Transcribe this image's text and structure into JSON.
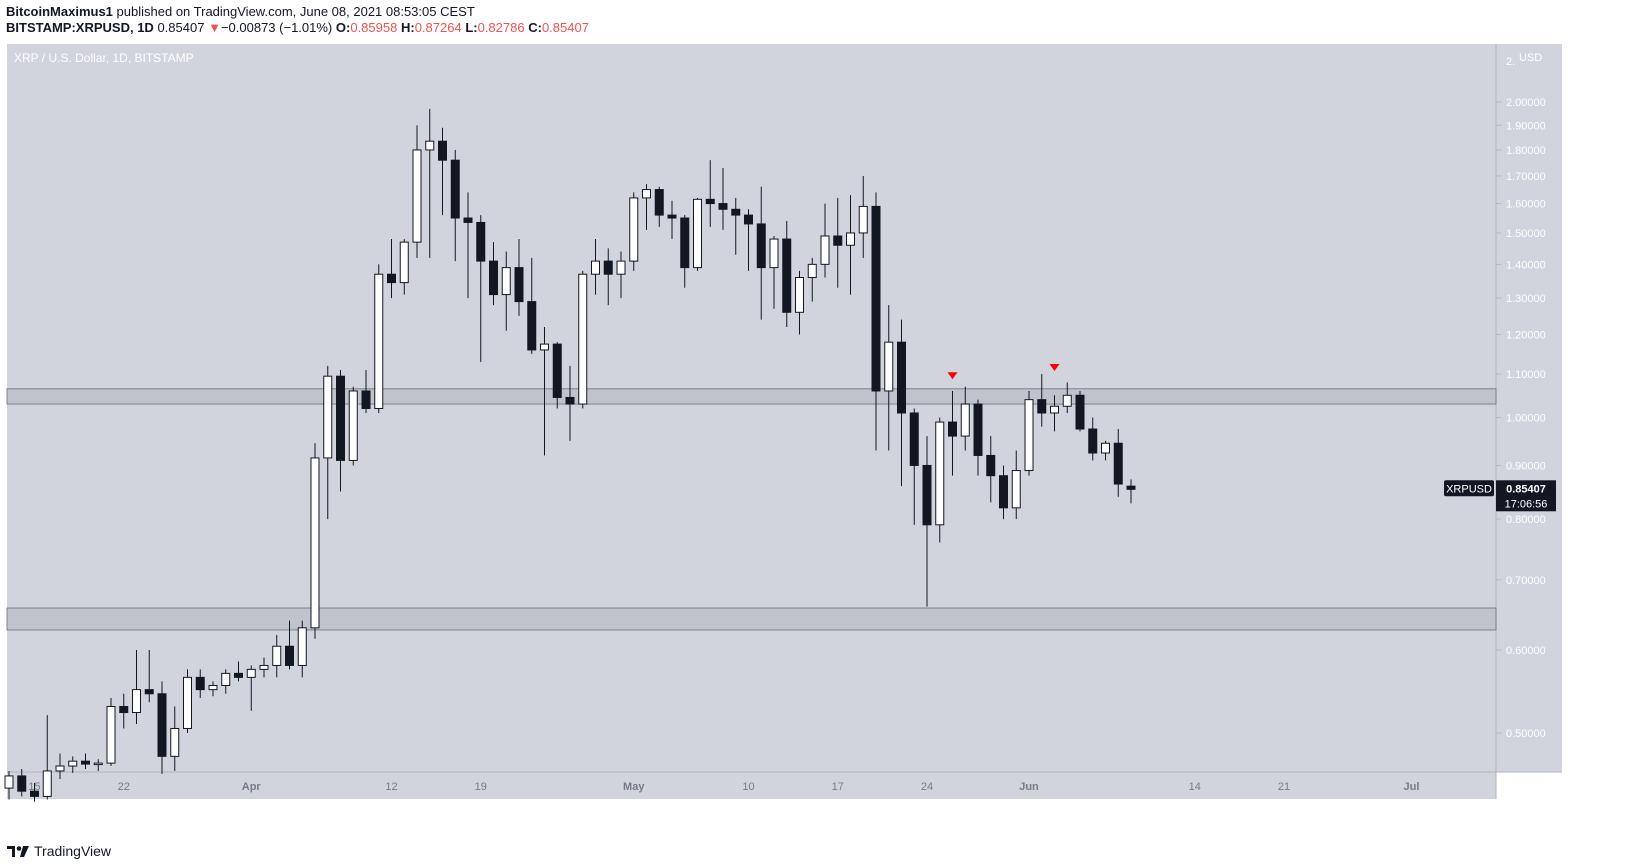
{
  "header": {
    "publisher": "BitcoinMaximus1",
    "published_text": "published on TradingView.com, June 08, 2021 08:53:05 CEST",
    "symbol": "BITSTAMP:XRPUSD, 1D",
    "last": "0.85407",
    "change_arrow": "▼",
    "change": "−0.00873 (−1.01%)",
    "o_label": "O:",
    "o": "0.85958",
    "h_label": "H:",
    "h": "0.87264",
    "l_label": "L:",
    "l": "0.82786",
    "c_label": "C:",
    "c": "0.85407"
  },
  "footer": {
    "brand": "TradingView",
    "logo_icon": "tradingview-logo-icon"
  },
  "colors": {
    "background": "#d1d4dc",
    "up_body": "#ffffff",
    "down_body": "#131722",
    "wick": "#131722",
    "marker": "#ff0000",
    "down_text": "#ef5350",
    "label_bg": "#131722"
  },
  "chart_data": {
    "type": "candlestick",
    "title": "XRP / U.S. Dollar, 1D, BITSTAMP",
    "currency": "USD",
    "y_scale": "log",
    "ylim": [
      0.43,
      2.1
    ],
    "y_ticks": [
      "2.00000",
      "1.90000",
      "1.80000",
      "1.70000",
      "1.60000",
      "1.50000",
      "1.40000",
      "1.30000",
      "1.20000",
      "1.10000",
      "1.00000",
      "0.90000",
      "0.80000",
      "0.70000",
      "0.60000",
      "0.50000"
    ],
    "y_top_label": "2.",
    "x_ticks": [
      {
        "label": "15",
        "date": "2021-03-15"
      },
      {
        "label": "22",
        "date": "2021-03-22"
      },
      {
        "label": "Apr",
        "date": "2021-04-01"
      },
      {
        "label": "12",
        "date": "2021-04-12"
      },
      {
        "label": "19",
        "date": "2021-04-19"
      },
      {
        "label": "May",
        "date": "2021-05-01"
      },
      {
        "label": "10",
        "date": "2021-05-10"
      },
      {
        "label": "17",
        "date": "2021-05-17"
      },
      {
        "label": "24",
        "date": "2021-05-24"
      },
      {
        "label": "Jun",
        "date": "2021-06-01"
      },
      {
        "label": "14",
        "date": "2021-06-14"
      },
      {
        "label": "21",
        "date": "2021-06-21"
      },
      {
        "label": "Jul",
        "date": "2021-07-01"
      }
    ],
    "x_range": [
      "2021-03-13",
      "2021-07-09"
    ],
    "candles": [
      {
        "date": "2021-03-13",
        "o": 0.443,
        "h": 0.46,
        "l": 0.432,
        "c": 0.455
      },
      {
        "date": "2021-03-14",
        "o": 0.455,
        "h": 0.462,
        "l": 0.435,
        "c": 0.44
      },
      {
        "date": "2021-03-15",
        "o": 0.44,
        "h": 0.448,
        "l": 0.43,
        "c": 0.435
      },
      {
        "date": "2021-03-16",
        "o": 0.435,
        "h": 0.52,
        "l": 0.432,
        "c": 0.46
      },
      {
        "date": "2021-03-17",
        "o": 0.46,
        "h": 0.478,
        "l": 0.452,
        "c": 0.465
      },
      {
        "date": "2021-03-18",
        "o": 0.465,
        "h": 0.475,
        "l": 0.458,
        "c": 0.47
      },
      {
        "date": "2021-03-19",
        "o": 0.47,
        "h": 0.478,
        "l": 0.462,
        "c": 0.467
      },
      {
        "date": "2021-03-20",
        "o": 0.467,
        "h": 0.472,
        "l": 0.46,
        "c": 0.468
      },
      {
        "date": "2021-03-21",
        "o": 0.468,
        "h": 0.54,
        "l": 0.465,
        "c": 0.53
      },
      {
        "date": "2021-03-22",
        "o": 0.53,
        "h": 0.545,
        "l": 0.505,
        "c": 0.523
      },
      {
        "date": "2021-03-23",
        "o": 0.523,
        "h": 0.6,
        "l": 0.51,
        "c": 0.55
      },
      {
        "date": "2021-03-24",
        "o": 0.55,
        "h": 0.6,
        "l": 0.535,
        "c": 0.545
      },
      {
        "date": "2021-03-25",
        "o": 0.545,
        "h": 0.56,
        "l": 0.457,
        "c": 0.475
      },
      {
        "date": "2021-03-26",
        "o": 0.475,
        "h": 0.53,
        "l": 0.46,
        "c": 0.505
      },
      {
        "date": "2021-03-27",
        "o": 0.505,
        "h": 0.575,
        "l": 0.5,
        "c": 0.565
      },
      {
        "date": "2021-03-28",
        "o": 0.565,
        "h": 0.575,
        "l": 0.54,
        "c": 0.55
      },
      {
        "date": "2021-03-29",
        "o": 0.55,
        "h": 0.56,
        "l": 0.542,
        "c": 0.555
      },
      {
        "date": "2021-03-30",
        "o": 0.555,
        "h": 0.575,
        "l": 0.545,
        "c": 0.57
      },
      {
        "date": "2021-03-31",
        "o": 0.57,
        "h": 0.585,
        "l": 0.56,
        "c": 0.565
      },
      {
        "date": "2021-04-01",
        "o": 0.565,
        "h": 0.58,
        "l": 0.525,
        "c": 0.575
      },
      {
        "date": "2021-04-02",
        "o": 0.575,
        "h": 0.59,
        "l": 0.565,
        "c": 0.58
      },
      {
        "date": "2021-04-03",
        "o": 0.58,
        "h": 0.62,
        "l": 0.565,
        "c": 0.605
      },
      {
        "date": "2021-04-04",
        "o": 0.605,
        "h": 0.64,
        "l": 0.575,
        "c": 0.58
      },
      {
        "date": "2021-04-05",
        "o": 0.58,
        "h": 0.64,
        "l": 0.565,
        "c": 0.63
      },
      {
        "date": "2021-04-06",
        "o": 0.63,
        "h": 0.945,
        "l": 0.615,
        "c": 0.915
      },
      {
        "date": "2021-04-07",
        "o": 0.915,
        "h": 1.12,
        "l": 0.8,
        "c": 1.095
      },
      {
        "date": "2021-04-08",
        "o": 1.095,
        "h": 1.11,
        "l": 0.85,
        "c": 0.91
      },
      {
        "date": "2021-04-09",
        "o": 0.91,
        "h": 1.07,
        "l": 0.9,
        "c": 1.06
      },
      {
        "date": "2021-04-10",
        "o": 1.06,
        "h": 1.11,
        "l": 1.01,
        "c": 1.02
      },
      {
        "date": "2021-04-11",
        "o": 1.02,
        "h": 1.4,
        "l": 1.01,
        "c": 1.37
      },
      {
        "date": "2021-04-12",
        "o": 1.37,
        "h": 1.48,
        "l": 1.3,
        "c": 1.345
      },
      {
        "date": "2021-04-13",
        "o": 1.345,
        "h": 1.48,
        "l": 1.31,
        "c": 1.47
      },
      {
        "date": "2021-04-14",
        "o": 1.47,
        "h": 1.9,
        "l": 1.42,
        "c": 1.8
      },
      {
        "date": "2021-04-15",
        "o": 1.8,
        "h": 1.97,
        "l": 1.42,
        "c": 1.835
      },
      {
        "date": "2021-04-16",
        "o": 1.835,
        "h": 1.89,
        "l": 1.56,
        "c": 1.76
      },
      {
        "date": "2021-04-17",
        "o": 1.76,
        "h": 1.8,
        "l": 1.41,
        "c": 1.55
      },
      {
        "date": "2021-04-18",
        "o": 1.55,
        "h": 1.64,
        "l": 1.3,
        "c": 1.535
      },
      {
        "date": "2021-04-19",
        "o": 1.535,
        "h": 1.56,
        "l": 1.13,
        "c": 1.41
      },
      {
        "date": "2021-04-20",
        "o": 1.41,
        "h": 1.47,
        "l": 1.28,
        "c": 1.31
      },
      {
        "date": "2021-04-21",
        "o": 1.31,
        "h": 1.44,
        "l": 1.21,
        "c": 1.39
      },
      {
        "date": "2021-04-22",
        "o": 1.39,
        "h": 1.48,
        "l": 1.25,
        "c": 1.29
      },
      {
        "date": "2021-04-23",
        "o": 1.29,
        "h": 1.42,
        "l": 1.15,
        "c": 1.16
      },
      {
        "date": "2021-04-24",
        "o": 1.16,
        "h": 1.22,
        "l": 0.92,
        "c": 1.175
      },
      {
        "date": "2021-04-25",
        "o": 1.175,
        "h": 1.18,
        "l": 1.02,
        "c": 1.045
      },
      {
        "date": "2021-04-26",
        "o": 1.045,
        "h": 1.12,
        "l": 0.95,
        "c": 1.03
      },
      {
        "date": "2021-04-27",
        "o": 1.03,
        "h": 1.38,
        "l": 1.02,
        "c": 1.37
      },
      {
        "date": "2021-04-28",
        "o": 1.37,
        "h": 1.48,
        "l": 1.31,
        "c": 1.41
      },
      {
        "date": "2021-04-29",
        "o": 1.41,
        "h": 1.45,
        "l": 1.28,
        "c": 1.37
      },
      {
        "date": "2021-04-30",
        "o": 1.37,
        "h": 1.44,
        "l": 1.3,
        "c": 1.41
      },
      {
        "date": "2021-05-01",
        "o": 1.41,
        "h": 1.64,
        "l": 1.38,
        "c": 1.62
      },
      {
        "date": "2021-05-02",
        "o": 1.62,
        "h": 1.67,
        "l": 1.51,
        "c": 1.65
      },
      {
        "date": "2021-05-03",
        "o": 1.65,
        "h": 1.66,
        "l": 1.52,
        "c": 1.56
      },
      {
        "date": "2021-05-04",
        "o": 1.56,
        "h": 1.61,
        "l": 1.48,
        "c": 1.55
      },
      {
        "date": "2021-05-05",
        "o": 1.55,
        "h": 1.56,
        "l": 1.33,
        "c": 1.39
      },
      {
        "date": "2021-05-06",
        "o": 1.39,
        "h": 1.62,
        "l": 1.38,
        "c": 1.615
      },
      {
        "date": "2021-05-07",
        "o": 1.615,
        "h": 1.76,
        "l": 1.52,
        "c": 1.6
      },
      {
        "date": "2021-05-08",
        "o": 1.6,
        "h": 1.73,
        "l": 1.51,
        "c": 1.58
      },
      {
        "date": "2021-05-09",
        "o": 1.58,
        "h": 1.62,
        "l": 1.43,
        "c": 1.56
      },
      {
        "date": "2021-05-10",
        "o": 1.56,
        "h": 1.58,
        "l": 1.38,
        "c": 1.53
      },
      {
        "date": "2021-05-11",
        "o": 1.53,
        "h": 1.66,
        "l": 1.24,
        "c": 1.39
      },
      {
        "date": "2021-05-12",
        "o": 1.39,
        "h": 1.49,
        "l": 1.27,
        "c": 1.48
      },
      {
        "date": "2021-05-13",
        "o": 1.48,
        "h": 1.54,
        "l": 1.22,
        "c": 1.26
      },
      {
        "date": "2021-05-14",
        "o": 1.26,
        "h": 1.38,
        "l": 1.2,
        "c": 1.36
      },
      {
        "date": "2021-05-15",
        "o": 1.36,
        "h": 1.42,
        "l": 1.29,
        "c": 1.4
      },
      {
        "date": "2021-05-16",
        "o": 1.4,
        "h": 1.6,
        "l": 1.36,
        "c": 1.49
      },
      {
        "date": "2021-05-17",
        "o": 1.49,
        "h": 1.62,
        "l": 1.33,
        "c": 1.46
      },
      {
        "date": "2021-05-18",
        "o": 1.46,
        "h": 1.63,
        "l": 1.31,
        "c": 1.5
      },
      {
        "date": "2021-05-19",
        "o": 1.5,
        "h": 1.7,
        "l": 1.42,
        "c": 1.59
      },
      {
        "date": "2021-05-20",
        "o": 1.59,
        "h": 1.64,
        "l": 0.93,
        "c": 1.06
      },
      {
        "date": "2021-05-21",
        "o": 1.06,
        "h": 1.28,
        "l": 0.93,
        "c": 1.18
      },
      {
        "date": "2021-05-22",
        "o": 1.18,
        "h": 1.24,
        "l": 0.86,
        "c": 1.01
      },
      {
        "date": "2021-05-23",
        "o": 1.01,
        "h": 1.02,
        "l": 0.79,
        "c": 0.9
      },
      {
        "date": "2021-05-24",
        "o": 0.9,
        "h": 0.96,
        "l": 0.66,
        "c": 0.79
      },
      {
        "date": "2021-05-25",
        "o": 0.79,
        "h": 1.0,
        "l": 0.76,
        "c": 0.99
      },
      {
        "date": "2021-05-26",
        "o": 0.99,
        "h": 1.06,
        "l": 0.88,
        "c": 0.96
      },
      {
        "date": "2021-05-27",
        "o": 0.96,
        "h": 1.07,
        "l": 0.93,
        "c": 1.03
      },
      {
        "date": "2021-05-28",
        "o": 1.03,
        "h": 1.04,
        "l": 0.88,
        "c": 0.92
      },
      {
        "date": "2021-05-29",
        "o": 0.92,
        "h": 0.96,
        "l": 0.83,
        "c": 0.88
      },
      {
        "date": "2021-05-30",
        "o": 0.88,
        "h": 0.9,
        "l": 0.8,
        "c": 0.82
      },
      {
        "date": "2021-05-31",
        "o": 0.82,
        "h": 0.93,
        "l": 0.8,
        "c": 0.89
      },
      {
        "date": "2021-06-01",
        "o": 0.89,
        "h": 1.06,
        "l": 0.88,
        "c": 1.04
      },
      {
        "date": "2021-06-02",
        "o": 1.04,
        "h": 1.1,
        "l": 0.98,
        "c": 1.01
      },
      {
        "date": "2021-06-03",
        "o": 1.01,
        "h": 1.05,
        "l": 0.97,
        "c": 1.025
      },
      {
        "date": "2021-06-04",
        "o": 1.025,
        "h": 1.08,
        "l": 1.01,
        "c": 1.05
      },
      {
        "date": "2021-06-05",
        "o": 1.05,
        "h": 1.06,
        "l": 0.97,
        "c": 0.975
      },
      {
        "date": "2021-06-06",
        "o": 0.975,
        "h": 1.0,
        "l": 0.91,
        "c": 0.925
      },
      {
        "date": "2021-06-07",
        "o": 0.925,
        "h": 0.95,
        "l": 0.91,
        "c": 0.945
      },
      {
        "date": "2021-06-08",
        "o": 0.945,
        "h": 0.975,
        "l": 0.84,
        "c": 0.864
      },
      {
        "date": "2021-06-09",
        "o": 0.86,
        "h": 0.873,
        "l": 0.828,
        "c": 0.854
      }
    ],
    "zones": [
      {
        "low": 1.03,
        "high": 1.065
      },
      {
        "low": 0.627,
        "high": 0.658
      }
    ],
    "markers": [
      {
        "date": "2021-05-26",
        "price": 1.095,
        "shape": "down-triangle"
      },
      {
        "date": "2021-06-03",
        "price": 1.115,
        "shape": "down-triangle"
      }
    ],
    "last_price": {
      "symbol": "XRPUSD",
      "price": 0.85407,
      "label": "0.85407",
      "countdown": "17:06:56"
    }
  }
}
